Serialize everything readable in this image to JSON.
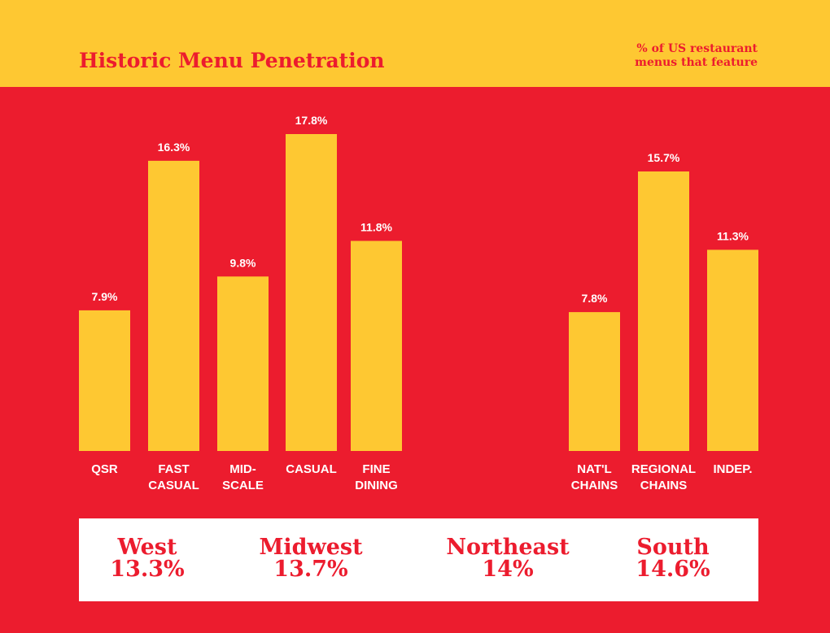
{
  "header": {
    "title": "Historic Menu Penetration",
    "subtitle_line1": "% of US restaurant",
    "subtitle_line2": "menus that feature"
  },
  "colors": {
    "background": "#ec1c2e",
    "accent": "#fec832",
    "panel": "#ffffff"
  },
  "chart_data": {
    "type": "bar",
    "ylim": [
      0,
      20
    ],
    "groups": [
      {
        "categories": [
          [
            "QSR"
          ],
          [
            "FAST",
            "CASUAL"
          ],
          [
            "MID-",
            "SCALE"
          ],
          [
            "CASUAL"
          ],
          [
            "FINE",
            "DINING"
          ]
        ],
        "values": [
          7.9,
          16.3,
          9.8,
          17.8,
          11.8
        ],
        "labels": [
          "7.9%",
          "16.3%",
          "9.8%",
          "17.8%",
          "11.8%"
        ]
      },
      {
        "categories": [
          [
            "NAT'L",
            "CHAINS"
          ],
          [
            "REGIONAL",
            "CHAINS"
          ],
          [
            "INDEP."
          ]
        ],
        "values": [
          7.8,
          15.7,
          11.3
        ],
        "labels": [
          "7.8%",
          "15.7%",
          "11.3%"
        ]
      }
    ]
  },
  "regions": [
    {
      "name": "West",
      "value": "13.3%"
    },
    {
      "name": "Midwest",
      "value": "13.7%"
    },
    {
      "name": "Northeast",
      "value": "14%"
    },
    {
      "name": "South",
      "value": "14.6%"
    }
  ]
}
